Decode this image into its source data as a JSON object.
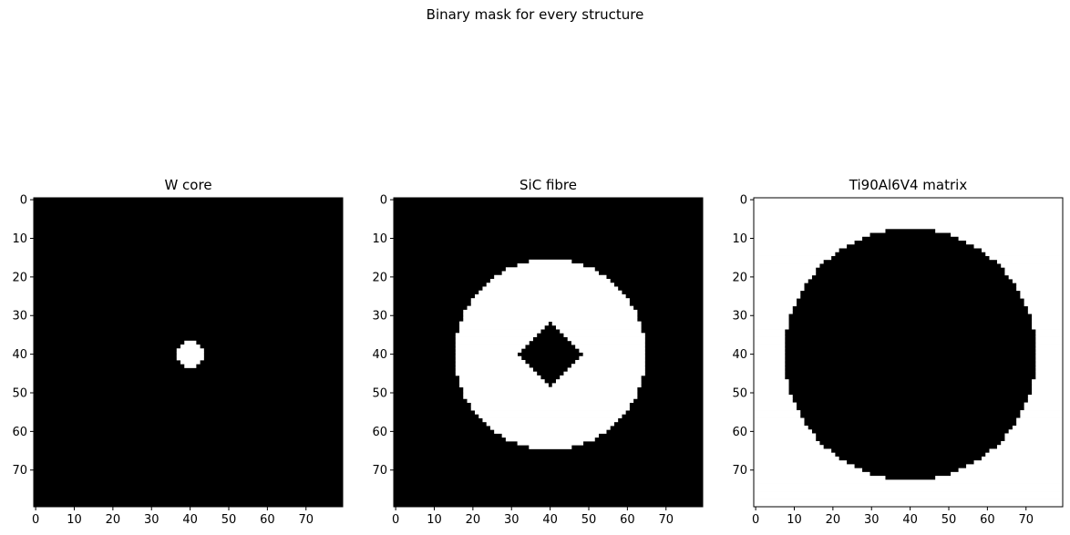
{
  "figure": {
    "suptitle": "Binary mask for every structure"
  },
  "chart_data": [
    {
      "type": "heatmap",
      "title": "W core",
      "grid_size": 80,
      "colormap": "gray",
      "colors": {
        "zero": "#000000",
        "one": "#ffffff"
      },
      "mask_shape": "disk",
      "center": [
        40,
        40
      ],
      "radius": 3.5,
      "inside_value": 1,
      "x_ticks": [
        0,
        10,
        20,
        30,
        40,
        50,
        60,
        70
      ],
      "y_ticks": [
        0,
        10,
        20,
        30,
        40,
        50,
        60,
        70
      ],
      "xlim": [
        -0.5,
        79.5
      ],
      "ylim": [
        79.5,
        -0.5
      ],
      "grid": false
    },
    {
      "type": "heatmap",
      "title": "SiC fibre",
      "grid_size": 80,
      "colormap": "gray",
      "colors": {
        "zero": "#000000",
        "one": "#ffffff"
      },
      "mask_shape": "annulus with diamond hole",
      "center": [
        40,
        40
      ],
      "outer_radius": 24.6,
      "inner_diamond_half_width": 8.2,
      "inside_value": 1,
      "x_ticks": [
        0,
        10,
        20,
        30,
        40,
        50,
        60,
        70
      ],
      "y_ticks": [
        0,
        10,
        20,
        30,
        40,
        50,
        60,
        70
      ],
      "xlim": [
        -0.5,
        79.5
      ],
      "ylim": [
        79.5,
        -0.5
      ],
      "grid": false
    },
    {
      "type": "heatmap",
      "title": "Ti90Al6V4 matrix",
      "grid_size": 80,
      "colormap": "gray",
      "colors": {
        "zero": "#000000",
        "one": "#ffffff"
      },
      "mask_shape": "outside of disk",
      "center": [
        40,
        40
      ],
      "radius": 32.6,
      "inside_value": 0,
      "x_ticks": [
        0,
        10,
        20,
        30,
        40,
        50,
        60,
        70
      ],
      "y_ticks": [
        0,
        10,
        20,
        30,
        40,
        50,
        60,
        70
      ],
      "xlim": [
        -0.5,
        79.5
      ],
      "ylim": [
        79.5,
        -0.5
      ],
      "grid": false
    }
  ]
}
